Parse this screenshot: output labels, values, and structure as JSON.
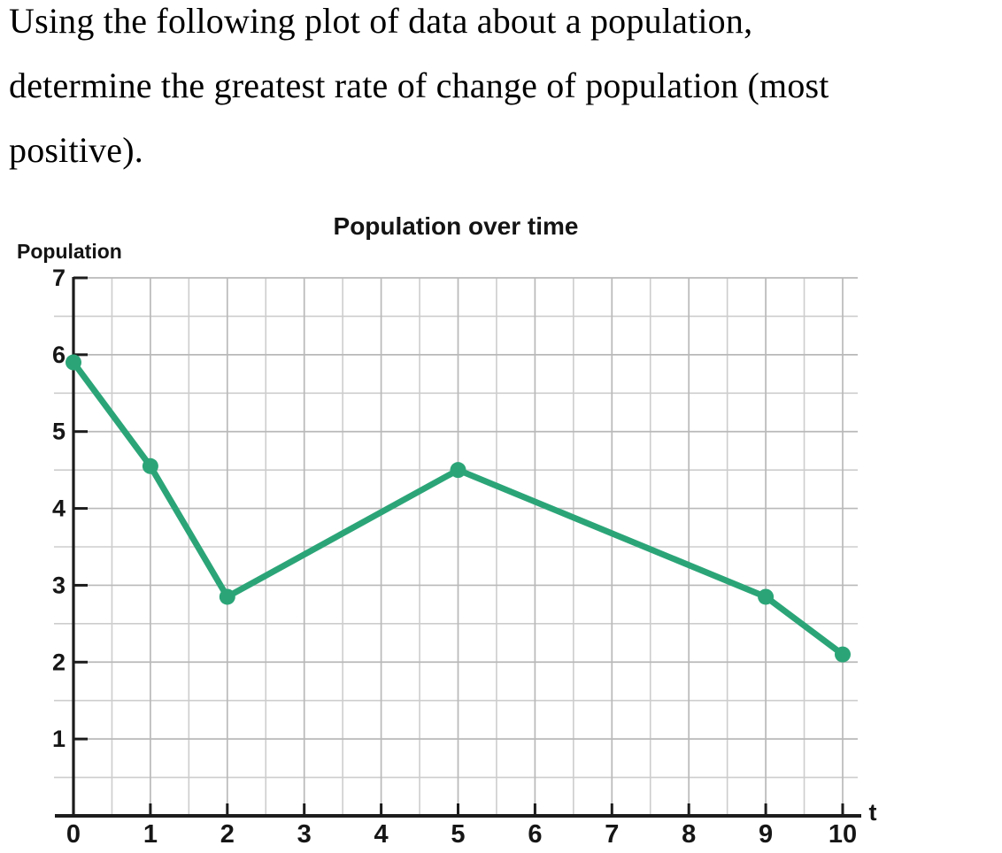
{
  "question": {
    "lines": [
      "Using the following plot of data about a population,",
      "determine the greatest rate of change of population (most",
      "positive)."
    ]
  },
  "chart_data": {
    "type": "line",
    "title": "Population over time",
    "xlabel": "t",
    "ylabel": "Population",
    "x": [
      0,
      1,
      2,
      5,
      9,
      10
    ],
    "y": [
      5.9,
      4.55,
      2.85,
      4.5,
      2.85,
      2.1
    ],
    "xlim": [
      0,
      10.2
    ],
    "ylim": [
      0,
      7
    ],
    "x_tick_labels": [
      "0",
      "1",
      "2",
      "3",
      "4",
      "5",
      "6",
      "7",
      "8",
      "9",
      "10"
    ],
    "y_tick_labels": [
      "1",
      "2",
      "3",
      "4",
      "5",
      "6",
      "7"
    ],
    "minor_grid_step": 0.5,
    "grid": true,
    "legend": "none",
    "series_name": "Population",
    "colors": {
      "line": "#2ba578",
      "marker": "#2ba578",
      "grid_minor": "#cdcdcd",
      "grid_major": "#b9b9b9",
      "axis": "#1c1c1c",
      "text": "#141414"
    }
  }
}
